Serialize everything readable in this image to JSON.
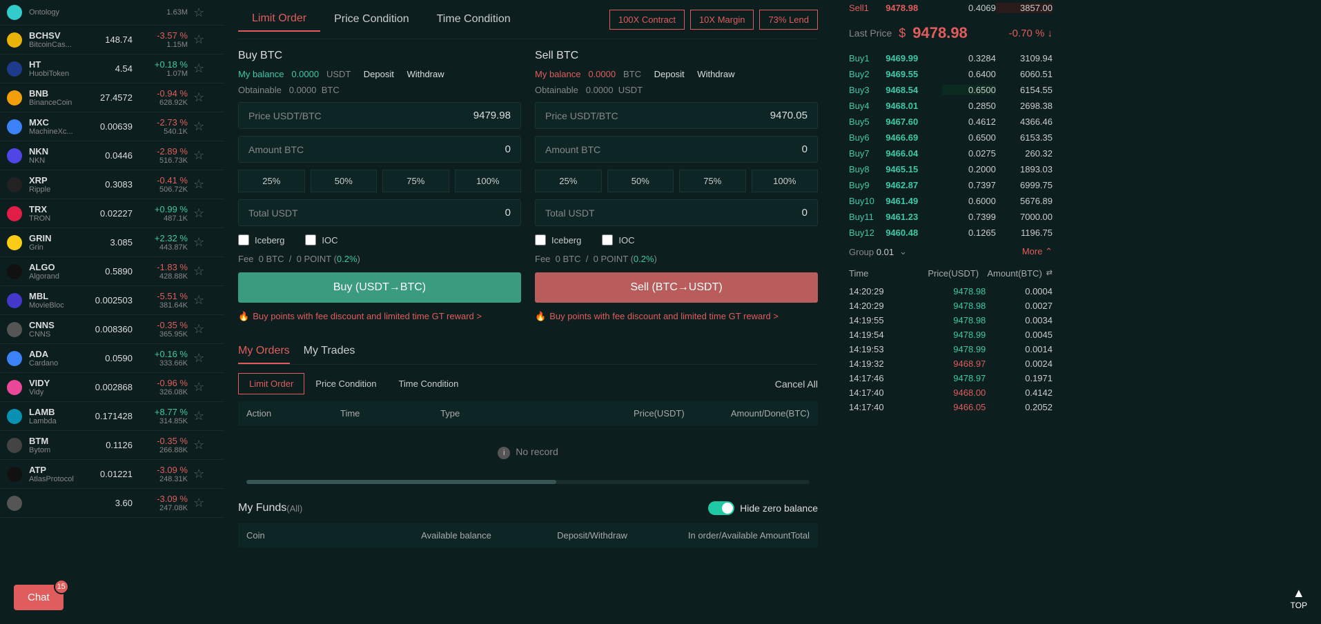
{
  "coins": [
    {
      "sym": "",
      "full": "Ontology",
      "price": "",
      "pct": "",
      "vol": "1.63M",
      "dir": "neg",
      "icon": "#3cc"
    },
    {
      "sym": "BCHSV",
      "full": "BitcoinCas...",
      "price": "148.74",
      "pct": "-3.57 %",
      "vol": "1.15M",
      "dir": "neg",
      "icon": "#eab308"
    },
    {
      "sym": "HT",
      "full": "HuobiToken",
      "price": "4.54",
      "pct": "+0.18 %",
      "vol": "1.07M",
      "dir": "pos",
      "icon": "#1e3a8a"
    },
    {
      "sym": "BNB",
      "full": "BinanceCoin",
      "price": "27.4572",
      "pct": "-0.94 %",
      "vol": "628.92K",
      "dir": "neg",
      "icon": "#f59e0b"
    },
    {
      "sym": "MXC",
      "full": "MachineXc...",
      "price": "0.00639",
      "pct": "-2.73 %",
      "vol": "540.1K",
      "dir": "neg",
      "icon": "#3b82f6"
    },
    {
      "sym": "NKN",
      "full": "NKN",
      "price": "0.0446",
      "pct": "-2.89 %",
      "vol": "516.73K",
      "dir": "neg",
      "icon": "#4f46e5"
    },
    {
      "sym": "XRP",
      "full": "Ripple",
      "price": "0.3083",
      "pct": "-0.41 %",
      "vol": "506.72K",
      "dir": "neg",
      "icon": "#222"
    },
    {
      "sym": "TRX",
      "full": "TRON",
      "price": "0.02227",
      "pct": "+0.99 %",
      "vol": "487.1K",
      "dir": "pos",
      "icon": "#e11d48"
    },
    {
      "sym": "GRIN",
      "full": "Grin",
      "price": "3.085",
      "pct": "+2.32 %",
      "vol": "443.87K",
      "dir": "pos",
      "icon": "#facc15"
    },
    {
      "sym": "ALGO",
      "full": "Algorand",
      "price": "0.5890",
      "pct": "-1.83 %",
      "vol": "428.88K",
      "dir": "neg",
      "icon": "#111"
    },
    {
      "sym": "MBL",
      "full": "MovieBloc",
      "price": "0.002503",
      "pct": "-5.51 %",
      "vol": "381.64K",
      "dir": "neg",
      "icon": "#4338ca"
    },
    {
      "sym": "CNNS",
      "full": "CNNS",
      "price": "0.008360",
      "pct": "-0.35 %",
      "vol": "365.95K",
      "dir": "neg",
      "icon": "#555"
    },
    {
      "sym": "ADA",
      "full": "Cardano",
      "price": "0.0590",
      "pct": "+0.16 %",
      "vol": "333.66K",
      "dir": "pos",
      "icon": "#3b82f6"
    },
    {
      "sym": "VIDY",
      "full": "Vidy",
      "price": "0.002868",
      "pct": "-0.96 %",
      "vol": "326.08K",
      "dir": "neg",
      "icon": "#ec4899"
    },
    {
      "sym": "LAMB",
      "full": "Lambda",
      "price": "0.171428",
      "pct": "+8.77 %",
      "vol": "314.85K",
      "dir": "pos",
      "icon": "#0891b2"
    },
    {
      "sym": "BTM",
      "full": "Bytom",
      "price": "0.1126",
      "pct": "-0.35 %",
      "vol": "266.88K",
      "dir": "neg",
      "icon": "#444"
    },
    {
      "sym": "ATP",
      "full": "AtlasProtocol",
      "price": "0.01221",
      "pct": "-3.09 %",
      "vol": "248.31K",
      "dir": "neg",
      "icon": "#111"
    },
    {
      "sym": "",
      "full": "",
      "price": "3.60",
      "pct": "-3.09 %",
      "vol": "247.08K",
      "dir": "neg",
      "icon": "#555"
    }
  ],
  "tabs": {
    "limit": "Limit Order",
    "price": "Price Condition",
    "time": "Time Condition"
  },
  "sideBtns": {
    "contract": "100X Contract",
    "margin": "10X Margin",
    "lend": "73% Lend"
  },
  "buy": {
    "title": "Buy BTC",
    "balLabel": "My balance",
    "balVal": "0.0000",
    "balCur": "USDT",
    "deposit": "Deposit",
    "withdraw": "Withdraw",
    "obtain": "Obtainable",
    "obtainVal": "0.0000",
    "obtainCur": "BTC",
    "priceLabel": "Price USDT/BTC",
    "priceVal": "9479.98",
    "amtLabel": "Amount BTC",
    "amtVal": "0",
    "totalLabel": "Total USDT",
    "totalVal": "0",
    "btn": "Buy (USDT→BTC)"
  },
  "sell": {
    "title": "Sell BTC",
    "balLabel": "My balance",
    "balVal": "0.0000",
    "balCur": "BTC",
    "deposit": "Deposit",
    "withdraw": "Withdraw",
    "obtain": "Obtainable",
    "obtainVal": "0.0000",
    "obtainCur": "USDT",
    "priceLabel": "Price USDT/BTC",
    "priceVal": "9470.05",
    "amtLabel": "Amount BTC",
    "amtVal": "0",
    "totalLabel": "Total USDT",
    "totalVal": "0",
    "btn": "Sell (BTC→USDT)"
  },
  "pcts": [
    "25%",
    "50%",
    "75%",
    "100%"
  ],
  "checks": {
    "iceberg": "Iceberg",
    "ioc": "IOC"
  },
  "fee": {
    "label": "Fee",
    "v1": "0",
    "c1": "BTC",
    "sep": "/",
    "v2": "0",
    "c2": "POINT",
    "pct": "0.2%"
  },
  "promo": "Buy points with fee discount and limited time GT reward >",
  "subTabs": {
    "orders": "My Orders",
    "trades": "My Trades"
  },
  "subTabs2": {
    "limit": "Limit Order",
    "price": "Price Condition",
    "time": "Time Condition"
  },
  "cancelAll": "Cancel All",
  "orderHead": {
    "action": "Action",
    "time": "Time",
    "type": "Type",
    "price": "Price(USDT)",
    "amount": "Amount/Done(BTC)"
  },
  "noRecord": "No record",
  "fundsTitle": "My Funds",
  "fundsAll": "(All)",
  "hideZero": "Hide zero balance",
  "fundsHead": {
    "coin": "Coin",
    "avail": "Available balance",
    "dep": "Deposit/Withdraw",
    "order": "In order/Available Amount",
    "total": "Total"
  },
  "book": {
    "sells": [
      {
        "label": "Sell1",
        "price": "9478.98",
        "amt": "0.4069",
        "total": "3857.00"
      }
    ],
    "lastLabel": "Last Price",
    "lastSym": "$",
    "lastPrice": "9478.98",
    "lastChg": "-0.70 % ↓",
    "buys": [
      {
        "label": "Buy1",
        "price": "9469.99",
        "amt": "0.3284",
        "total": "3109.94"
      },
      {
        "label": "Buy2",
        "price": "9469.55",
        "amt": "0.6400",
        "total": "6060.51"
      },
      {
        "label": "Buy3",
        "price": "9468.54",
        "amt": "0.6500",
        "total": "6154.55",
        "hl": true
      },
      {
        "label": "Buy4",
        "price": "9468.01",
        "amt": "0.2850",
        "total": "2698.38"
      },
      {
        "label": "Buy5",
        "price": "9467.60",
        "amt": "0.4612",
        "total": "4366.46"
      },
      {
        "label": "Buy6",
        "price": "9466.69",
        "amt": "0.6500",
        "total": "6153.35"
      },
      {
        "label": "Buy7",
        "price": "9466.04",
        "amt": "0.0275",
        "total": "260.32"
      },
      {
        "label": "Buy8",
        "price": "9465.15",
        "amt": "0.2000",
        "total": "1893.03"
      },
      {
        "label": "Buy9",
        "price": "9462.87",
        "amt": "0.7397",
        "total": "6999.75"
      },
      {
        "label": "Buy10",
        "price": "9461.49",
        "amt": "0.6000",
        "total": "5676.89"
      },
      {
        "label": "Buy11",
        "price": "9461.23",
        "amt": "0.7399",
        "total": "7000.00"
      },
      {
        "label": "Buy12",
        "price": "9460.48",
        "amt": "0.1265",
        "total": "1196.75"
      }
    ]
  },
  "group": {
    "label": "Group",
    "val": "0.01",
    "more": "More"
  },
  "tradesHead": {
    "time": "Time",
    "price": "Price(USDT)",
    "amount": "Amount(BTC)"
  },
  "trades": [
    {
      "time": "14:20:29",
      "price": "9478.98",
      "amt": "0.0004",
      "dir": "pos"
    },
    {
      "time": "14:20:29",
      "price": "9478.98",
      "amt": "0.0027",
      "dir": "pos"
    },
    {
      "time": "14:19:55",
      "price": "9478.98",
      "amt": "0.0034",
      "dir": "pos"
    },
    {
      "time": "14:19:54",
      "price": "9478.99",
      "amt": "0.0045",
      "dir": "pos"
    },
    {
      "time": "14:19:53",
      "price": "9478.99",
      "amt": "0.0014",
      "dir": "pos"
    },
    {
      "time": "14:19:32",
      "price": "9468.97",
      "amt": "0.0024",
      "dir": "neg"
    },
    {
      "time": "14:17:46",
      "price": "9478.97",
      "amt": "0.1971",
      "dir": "pos"
    },
    {
      "time": "14:17:40",
      "price": "9468.00",
      "amt": "0.4142",
      "dir": "neg"
    },
    {
      "time": "14:17:40",
      "price": "9466.05",
      "amt": "0.2052",
      "dir": "neg"
    }
  ],
  "chat": {
    "label": "Chat",
    "badge": "15"
  },
  "top": "TOP"
}
